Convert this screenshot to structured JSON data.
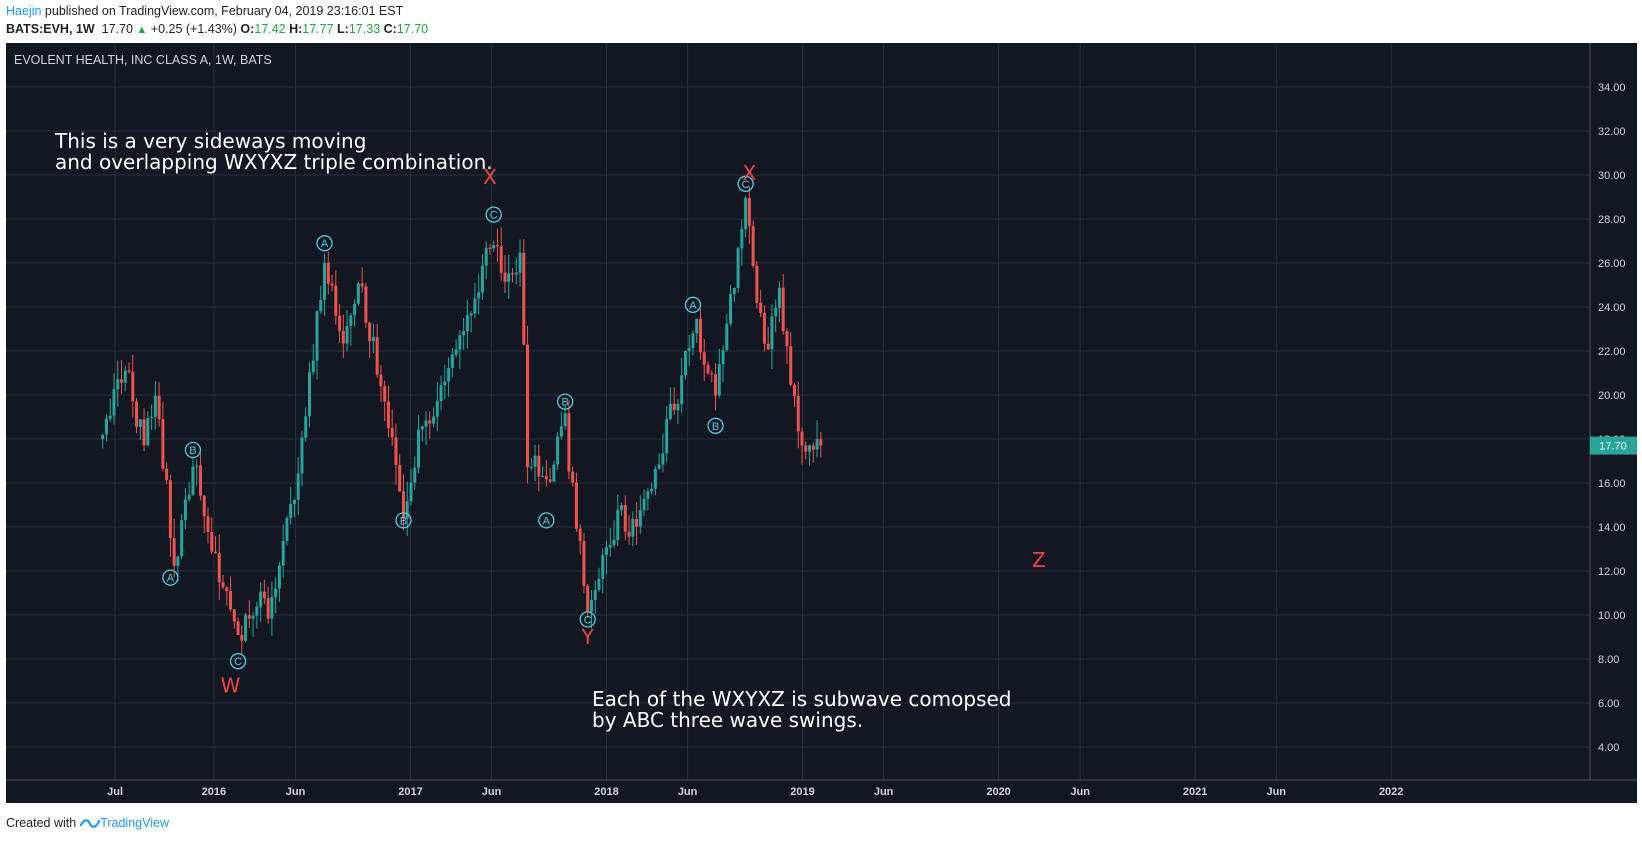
{
  "header": {
    "author": "Haejin",
    "published_text": " published on TradingView.com, February 04, 2019 23:16:01 EST",
    "symbol": "BATS:EVH, 1W",
    "last": "17.70",
    "change": "+0.25 (+1.43%)",
    "open_label": "O:",
    "open": "17.42",
    "high_label": "H:",
    "high": "17.77",
    "low_label": "L:",
    "low": "17.33",
    "close_label": "C:",
    "close": "17.70"
  },
  "footer": {
    "created_with": "Created with",
    "brand": "TradingView"
  },
  "chart_data": {
    "type": "candlestick",
    "title": "EVOLENT HEALTH, INC CLASS A, 1W, BATS",
    "ylim": [
      2.5,
      36
    ],
    "y_ticks": [
      "34.00",
      "32.00",
      "30.00",
      "28.00",
      "26.00",
      "24.00",
      "22.00",
      "20.00",
      "18.00",
      "16.00",
      "14.00",
      "12.00",
      "10.00",
      "8.00",
      "6.00",
      "4.00"
    ],
    "x_ticks": [
      "Jul",
      "2016",
      "Jun",
      "2017",
      "Jun",
      "2018",
      "Jun",
      "2019",
      "Jun",
      "2020",
      "Jun",
      "2021",
      "Jun",
      "2022"
    ],
    "last_price_label": "17.70",
    "annotations": {
      "note1_line1": "This is a very sideways moving",
      "note1_line2": "and overlapping WXYXZ triple combination.",
      "note2_line1": "Each of the WXYXZ is subwave comopsed",
      "note2_line2": "by ABC three wave swings."
    },
    "wave_labels": [
      {
        "text": "A",
        "date": "2015-10-12",
        "price": 11.7,
        "kind": "circle"
      },
      {
        "text": "B",
        "date": "2015-11-23",
        "price": 17.5,
        "kind": "circle"
      },
      {
        "text": "C",
        "date": "2016-02-15",
        "price": 7.9,
        "kind": "circle"
      },
      {
        "text": "W",
        "date": "2016-02-01",
        "price": 6.8,
        "kind": "letter"
      },
      {
        "text": "A",
        "date": "2016-07-25",
        "price": 26.9,
        "kind": "circle"
      },
      {
        "text": "B",
        "date": "2016-12-19",
        "price": 14.3,
        "kind": "circle"
      },
      {
        "text": "C",
        "date": "2017-06-05",
        "price": 28.2,
        "kind": "circle"
      },
      {
        "text": "X",
        "date": "2017-05-29",
        "price": 29.9,
        "kind": "letter"
      },
      {
        "text": "A",
        "date": "2017-09-11",
        "price": 14.3,
        "kind": "circle"
      },
      {
        "text": "B",
        "date": "2017-10-16",
        "price": 19.7,
        "kind": "circle"
      },
      {
        "text": "C",
        "date": "2017-11-27",
        "price": 9.8,
        "kind": "circle"
      },
      {
        "text": "Y",
        "date": "2017-11-27",
        "price": 9.0,
        "kind": "letter"
      },
      {
        "text": "A",
        "date": "2018-06-11",
        "price": 24.1,
        "kind": "circle"
      },
      {
        "text": "B",
        "date": "2018-07-23",
        "price": 18.6,
        "kind": "circle"
      },
      {
        "text": "C",
        "date": "2018-09-17",
        "price": 29.6,
        "kind": "circle"
      },
      {
        "text": "X",
        "date": "2018-09-24",
        "price": 30.1,
        "kind": "letter"
      },
      {
        "text": "Z",
        "date": "2020-03-16",
        "price": 12.5,
        "kind": "letter"
      }
    ],
    "path": [
      {
        "date": "2015-06-08",
        "price": 18.0
      },
      {
        "date": "2015-07-20",
        "price": 21.5
      },
      {
        "date": "2015-08-24",
        "price": 17.5
      },
      {
        "date": "2015-09-14",
        "price": 20.5
      },
      {
        "date": "2015-10-19",
        "price": 12.3
      },
      {
        "date": "2015-11-23",
        "price": 17.0
      },
      {
        "date": "2016-02-15",
        "price": 8.5
      },
      {
        "date": "2016-03-14",
        "price": 10.5
      },
      {
        "date": "2016-04-18",
        "price": 10.4
      },
      {
        "date": "2016-05-30",
        "price": 15.5
      },
      {
        "date": "2016-07-25",
        "price": 26.0
      },
      {
        "date": "2016-08-29",
        "price": 22.0
      },
      {
        "date": "2016-09-26",
        "price": 25.5
      },
      {
        "date": "2016-12-19",
        "price": 15.0
      },
      {
        "date": "2017-01-23",
        "price": 18.5
      },
      {
        "date": "2017-04-03",
        "price": 22.5
      },
      {
        "date": "2017-06-05",
        "price": 27.0
      },
      {
        "date": "2017-06-26",
        "price": 25.5
      },
      {
        "date": "2017-07-24",
        "price": 26.5
      },
      {
        "date": "2017-08-07",
        "price": 17.0
      },
      {
        "date": "2017-09-11",
        "price": 16.0
      },
      {
        "date": "2017-10-16",
        "price": 18.5
      },
      {
        "date": "2017-11-27",
        "price": 10.3
      },
      {
        "date": "2018-01-22",
        "price": 14.5
      },
      {
        "date": "2018-02-26",
        "price": 14.0
      },
      {
        "date": "2018-05-14",
        "price": 20.0
      },
      {
        "date": "2018-06-11",
        "price": 23.5
      },
      {
        "date": "2018-07-23",
        "price": 20.0
      },
      {
        "date": "2018-09-17",
        "price": 28.5
      },
      {
        "date": "2018-10-22",
        "price": 22.0
      },
      {
        "date": "2018-11-19",
        "price": 25.0
      },
      {
        "date": "2018-12-24",
        "price": 18.0
      },
      {
        "date": "2019-02-04",
        "price": 17.7
      }
    ]
  },
  "colors": {
    "background": "#131722",
    "grid": "#2a2e39",
    "up": "#26a69a",
    "down": "#ef5350",
    "label_cyan": "#4dd0e1",
    "wave_red": "#ef4444",
    "text_white": "#ffffff",
    "axis_text": "#d1d4dc",
    "price_tag": "#26a69a"
  }
}
